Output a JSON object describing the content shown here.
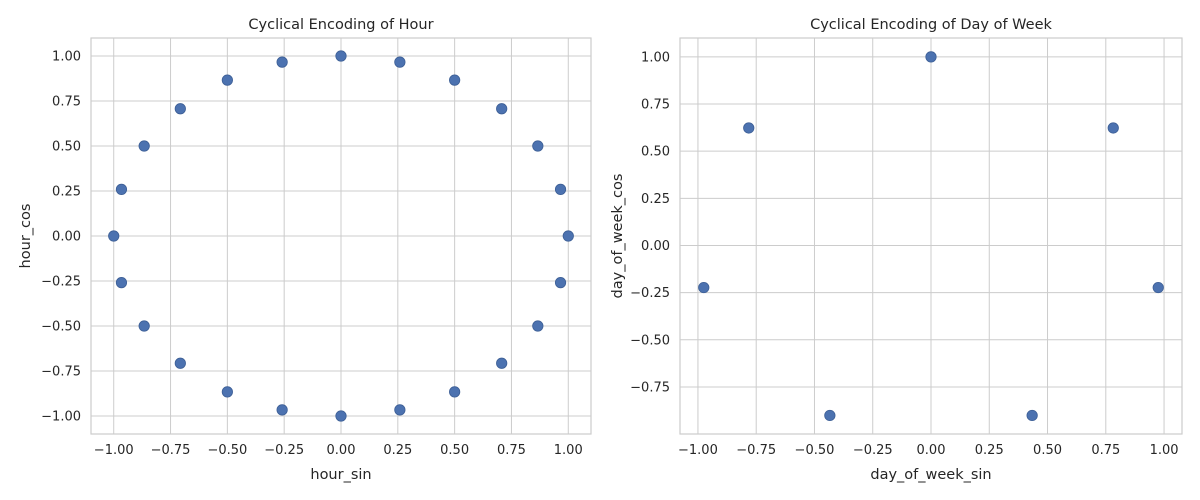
{
  "chart_data": [
    {
      "type": "scatter",
      "title": "Cyclical Encoding of Hour",
      "xlabel": "hour_sin",
      "ylabel": "hour_cos",
      "xlim": [
        -1.1,
        1.1
      ],
      "ylim": [
        -1.1,
        1.1
      ],
      "xticks": [
        -1.0,
        -0.75,
        -0.5,
        -0.25,
        0.0,
        0.25,
        0.5,
        0.75,
        1.0
      ],
      "xtick_labels": [
        "−1.00",
        "−0.75",
        "−0.50",
        "−0.25",
        "0.00",
        "0.25",
        "0.50",
        "0.75",
        "1.00"
      ],
      "yticks": [
        -1.0,
        -0.75,
        -0.5,
        -0.25,
        0.0,
        0.25,
        0.5,
        0.75,
        1.0
      ],
      "ytick_labels": [
        "−1.00",
        "−0.75",
        "−0.50",
        "−0.25",
        "0.00",
        "0.25",
        "0.50",
        "0.75",
        "1.00"
      ],
      "grid": true,
      "marker_color": "#4c72b0",
      "points": [
        {
          "x": 0.0,
          "y": 1.0
        },
        {
          "x": 0.259,
          "y": 0.966
        },
        {
          "x": 0.5,
          "y": 0.866
        },
        {
          "x": 0.707,
          "y": 0.707
        },
        {
          "x": 0.866,
          "y": 0.5
        },
        {
          "x": 0.966,
          "y": 0.259
        },
        {
          "x": 1.0,
          "y": 0.0
        },
        {
          "x": 0.966,
          "y": -0.259
        },
        {
          "x": 0.866,
          "y": -0.5
        },
        {
          "x": 0.707,
          "y": -0.707
        },
        {
          "x": 0.5,
          "y": -0.866
        },
        {
          "x": 0.259,
          "y": -0.966
        },
        {
          "x": 0.0,
          "y": -1.0
        },
        {
          "x": -0.259,
          "y": -0.966
        },
        {
          "x": -0.5,
          "y": -0.866
        },
        {
          "x": -0.707,
          "y": -0.707
        },
        {
          "x": -0.866,
          "y": -0.5
        },
        {
          "x": -0.966,
          "y": -0.259
        },
        {
          "x": -1.0,
          "y": 0.0
        },
        {
          "x": -0.966,
          "y": 0.259
        },
        {
          "x": -0.866,
          "y": 0.5
        },
        {
          "x": -0.707,
          "y": 0.707
        },
        {
          "x": -0.5,
          "y": 0.866
        },
        {
          "x": -0.259,
          "y": 0.966
        }
      ]
    },
    {
      "type": "scatter",
      "title": "Cyclical Encoding of Day of Week",
      "xlabel": "day_of_week_sin",
      "ylabel": "day_of_week_cos",
      "xlim": [
        -1.077,
        1.077
      ],
      "ylim": [
        -0.9994,
        1.1
      ],
      "xticks": [
        -1.0,
        -0.75,
        -0.5,
        -0.25,
        0.0,
        0.25,
        0.5,
        0.75,
        1.0
      ],
      "xtick_labels": [
        "−1.00",
        "−0.75",
        "−0.50",
        "−0.25",
        "0.00",
        "0.25",
        "0.50",
        "0.75",
        "1.00"
      ],
      "yticks": [
        -0.75,
        -0.5,
        -0.25,
        0.0,
        0.25,
        0.5,
        0.75,
        1.0
      ],
      "ytick_labels": [
        "−0.75",
        "−0.50",
        "−0.25",
        "0.00",
        "0.25",
        "0.50",
        "0.75",
        "1.00"
      ],
      "grid": true,
      "marker_color": "#4c72b0",
      "points": [
        {
          "x": 0.0,
          "y": 1.0
        },
        {
          "x": 0.782,
          "y": 0.623
        },
        {
          "x": 0.975,
          "y": -0.223
        },
        {
          "x": 0.434,
          "y": -0.901
        },
        {
          "x": -0.434,
          "y": -0.901
        },
        {
          "x": -0.975,
          "y": -0.223
        },
        {
          "x": -0.782,
          "y": 0.623
        }
      ]
    }
  ]
}
